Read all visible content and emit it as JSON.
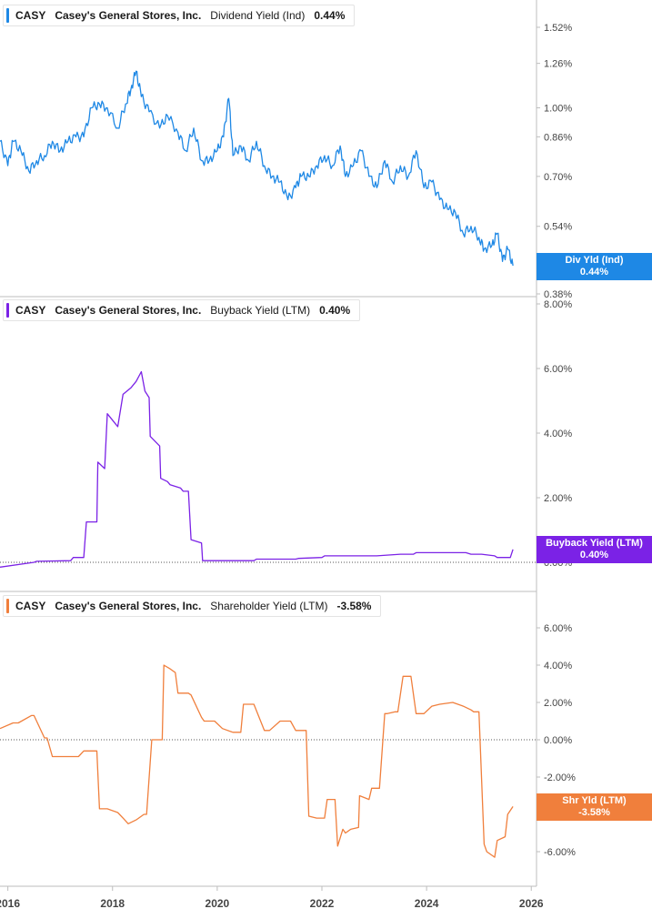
{
  "colors": {
    "dividend": "#1e88e5",
    "buyback": "#7b22e6",
    "shareholder": "#f07f3c",
    "grid": "#cccccc",
    "axis_text": "#444444"
  },
  "x_axis": {
    "range": [
      2015.85,
      2026.1
    ],
    "ticks": [
      "2016",
      "2018",
      "2020",
      "2022",
      "2024",
      "2026"
    ]
  },
  "panels": [
    {
      "ticker": "CASY",
      "company": "Casey's General Stores, Inc.",
      "metric": "Dividend Yield (Ind)",
      "value": "0.44%",
      "badge_line1": "Div Yld (Ind)",
      "badge_line2": "0.44%",
      "ticks": [
        "1.52%",
        "1.26%",
        "1.00%",
        "0.86%",
        "0.70%",
        "0.54%",
        "0.38%"
      ]
    },
    {
      "ticker": "CASY",
      "company": "Casey's General Stores, Inc.",
      "metric": "Buyback Yield (LTM)",
      "value": "0.40%",
      "badge_line1": "Buyback Yield (LTM)",
      "badge_line2": "0.40%",
      "ticks": [
        "8.00%",
        "6.00%",
        "4.00%",
        "2.00%",
        "0.00%"
      ]
    },
    {
      "ticker": "CASY",
      "company": "Casey's General Stores, Inc.",
      "metric": "Shareholder Yield (LTM)",
      "value": "-3.58%",
      "badge_line1": "Shr Yld (LTM)",
      "badge_line2": "-3.58%",
      "ticks": [
        "6.00%",
        "4.00%",
        "2.00%",
        "0.00%",
        "-2.00%",
        "-4.00%",
        "-6.00%"
      ]
    }
  ],
  "chart_data": [
    {
      "type": "line",
      "series": [
        {
          "name": "Div Yld (Ind)",
          "x": [
            2015.85,
            2016.0,
            2016.1,
            2016.25,
            2016.4,
            2016.55,
            2016.7,
            2016.85,
            2017.0,
            2017.15,
            2017.3,
            2017.45,
            2017.6,
            2017.75,
            2017.9,
            2018.1,
            2018.25,
            2018.35,
            2018.45,
            2018.55,
            2018.7,
            2018.9,
            2019.05,
            2019.25,
            2019.4,
            2019.55,
            2019.7,
            2019.85,
            2020.0,
            2020.12,
            2020.22,
            2020.3,
            2020.45,
            2020.6,
            2020.75,
            2020.9,
            2021.05,
            2021.2,
            2021.35,
            2021.5,
            2021.6,
            2021.75,
            2021.9,
            2022.05,
            2022.2,
            2022.35,
            2022.45,
            2022.6,
            2022.75,
            2022.9,
            2023.05,
            2023.2,
            2023.35,
            2023.5,
            2023.65,
            2023.8,
            2023.95,
            2024.1,
            2024.25,
            2024.4,
            2024.55,
            2024.7,
            2024.85,
            2025.0,
            2025.1,
            2025.25,
            2025.35,
            2025.45,
            2025.55,
            2025.65
          ],
          "y": [
            0.84,
            0.74,
            0.84,
            0.8,
            0.72,
            0.76,
            0.78,
            0.84,
            0.8,
            0.84,
            0.86,
            0.86,
            1.0,
            1.02,
            1.0,
            0.9,
            1.02,
            1.1,
            1.21,
            1.06,
            0.98,
            0.9,
            0.96,
            0.88,
            0.8,
            0.9,
            0.76,
            0.76,
            0.8,
            0.86,
            1.05,
            0.78,
            0.82,
            0.76,
            0.84,
            0.74,
            0.7,
            0.68,
            0.62,
            0.66,
            0.7,
            0.7,
            0.74,
            0.78,
            0.74,
            0.82,
            0.7,
            0.74,
            0.8,
            0.7,
            0.66,
            0.76,
            0.68,
            0.74,
            0.7,
            0.8,
            0.66,
            0.68,
            0.62,
            0.59,
            0.58,
            0.52,
            0.54,
            0.51,
            0.48,
            0.49,
            0.52,
            0.45,
            0.48,
            0.44
          ],
          "values_label": "Dividend Yield (Ind)"
        }
      ],
      "ylim": [
        0.38,
        1.65
      ],
      "yscale": "log",
      "last_value": 0.44
    },
    {
      "type": "line",
      "series": [
        {
          "name": "Buyback Yield (LTM)",
          "x": [
            2015.85,
            2016.5,
            2016.55,
            2017.2,
            2017.25,
            2017.45,
            2017.5,
            2017.7,
            2017.72,
            2017.85,
            2017.9,
            2018.1,
            2018.2,
            2018.35,
            2018.45,
            2018.55,
            2018.62,
            2018.7,
            2018.72,
            2018.9,
            2018.92,
            2019.05,
            2019.1,
            2019.3,
            2019.35,
            2019.45,
            2019.5,
            2019.7,
            2019.72,
            2020.3,
            2020.35,
            2020.7,
            2020.75,
            2021.5,
            2021.55,
            2022.0,
            2022.05,
            2022.5,
            2022.55,
            2023.0,
            2023.05,
            2023.5,
            2023.55,
            2023.75,
            2023.8,
            2024.1,
            2024.2,
            2024.4,
            2024.5,
            2024.75,
            2024.85,
            2025.0,
            2025.05,
            2025.3,
            2025.35,
            2025.6,
            2025.65
          ],
          "y": [
            -0.15,
            0.0,
            0.03,
            0.05,
            0.15,
            0.15,
            1.25,
            1.25,
            3.1,
            2.9,
            4.6,
            4.2,
            5.2,
            5.4,
            5.6,
            5.9,
            5.3,
            5.1,
            3.9,
            3.6,
            2.6,
            2.5,
            2.4,
            2.3,
            2.2,
            2.2,
            0.7,
            0.6,
            0.05,
            0.05,
            0.05,
            0.05,
            0.1,
            0.1,
            0.12,
            0.15,
            0.2,
            0.2,
            0.2,
            0.2,
            0.2,
            0.25,
            0.25,
            0.25,
            0.3,
            0.3,
            0.3,
            0.3,
            0.3,
            0.3,
            0.25,
            0.25,
            0.25,
            0.2,
            0.15,
            0.15,
            0.4
          ],
          "values_label": "Buyback Yield (LTM)"
        }
      ],
      "ylim": [
        0.0,
        8.0
      ],
      "last_value": 0.4
    },
    {
      "type": "line",
      "series": [
        {
          "name": "Shareholder Yield (LTM)",
          "x": [
            2015.85,
            2016.1,
            2016.2,
            2016.45,
            2016.5,
            2016.7,
            2016.75,
            2016.85,
            2017.0,
            2017.2,
            2017.35,
            2017.45,
            2017.5,
            2017.7,
            2017.75,
            2017.9,
            2018.1,
            2018.2,
            2018.3,
            2018.45,
            2018.6,
            2018.65,
            2018.75,
            2018.95,
            2018.98,
            2019.1,
            2019.2,
            2019.25,
            2019.45,
            2019.5,
            2019.7,
            2019.75,
            2019.95,
            2020.1,
            2020.3,
            2020.45,
            2020.5,
            2020.7,
            2020.9,
            2021.0,
            2021.2,
            2021.4,
            2021.5,
            2021.55,
            2021.7,
            2021.75,
            2021.9,
            2022.05,
            2022.1,
            2022.25,
            2022.3,
            2022.4,
            2022.45,
            2022.55,
            2022.7,
            2022.72,
            2022.9,
            2022.95,
            2023.1,
            2023.2,
            2023.25,
            2023.4,
            2023.45,
            2023.55,
            2023.7,
            2023.8,
            2023.95,
            2024.1,
            2024.25,
            2024.5,
            2024.7,
            2024.85,
            2024.9,
            2025.0,
            2025.1,
            2025.15,
            2025.3,
            2025.35,
            2025.5,
            2025.55,
            2025.65
          ],
          "y": [
            0.6,
            0.9,
            0.9,
            1.3,
            1.3,
            0.1,
            0.1,
            -0.9,
            -0.9,
            -0.9,
            -0.9,
            -0.6,
            -0.6,
            -0.6,
            -3.7,
            -3.7,
            -3.9,
            -4.2,
            -4.5,
            -4.3,
            -4.0,
            -4.0,
            0.0,
            0.0,
            4.0,
            3.8,
            3.6,
            2.5,
            2.5,
            2.4,
            1.2,
            1.0,
            1.0,
            0.6,
            0.4,
            0.4,
            1.9,
            1.9,
            0.5,
            0.5,
            1.0,
            1.0,
            0.5,
            0.5,
            0.5,
            -4.1,
            -4.2,
            -4.2,
            -3.2,
            -3.2,
            -5.7,
            -4.8,
            -5.0,
            -4.8,
            -4.7,
            -3.0,
            -3.2,
            -2.6,
            -2.6,
            1.4,
            1.4,
            1.5,
            1.5,
            3.4,
            3.4,
            1.4,
            1.4,
            1.8,
            1.9,
            2.0,
            1.8,
            1.6,
            1.5,
            1.5,
            -5.6,
            -6.0,
            -6.3,
            -5.4,
            -5.2,
            -4.0,
            -3.58
          ],
          "values_label": "Shareholder Yield (LTM)"
        }
      ],
      "ylim": [
        -7.0,
        7.0
      ],
      "last_value": -3.58
    }
  ]
}
